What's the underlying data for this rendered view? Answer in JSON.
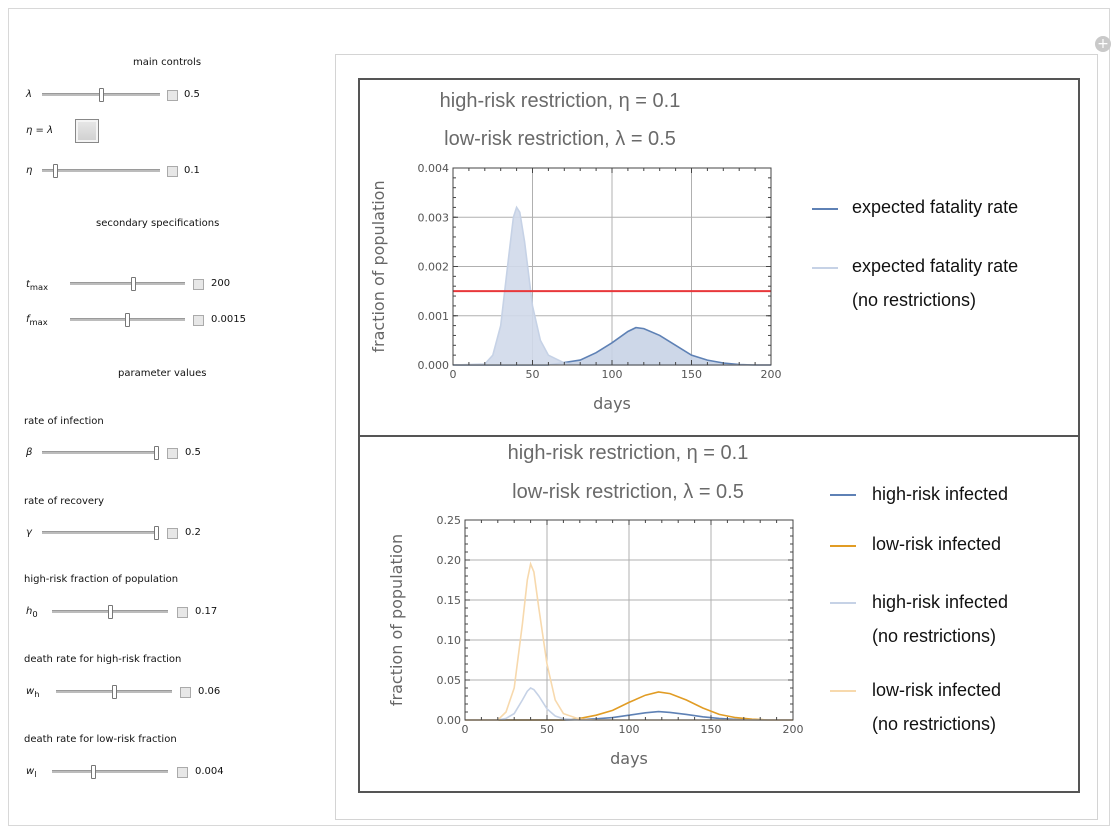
{
  "controls": {
    "main_header": "main controls",
    "lambda": {
      "label": "λ",
      "value": "0.5",
      "fraction": 0.5
    },
    "eta_eq_lambda_label": "η = λ",
    "eta": {
      "label": "η",
      "value": "0.1",
      "fraction": 0.1
    },
    "secondary_header": "secondary specifications",
    "tmax": {
      "label": "t",
      "sub": "max",
      "value": "200",
      "fraction": 0.55
    },
    "fmax": {
      "label": "f",
      "sub": "max",
      "value": "0.0015",
      "fraction": 0.5
    },
    "param_header": "parameter values",
    "beta": {
      "heading": "rate of infection",
      "label": "β",
      "value": "0.5",
      "fraction": 1.0
    },
    "gamma": {
      "heading": "rate of recovery",
      "label": "γ",
      "value": "0.2",
      "fraction": 1.0
    },
    "h0": {
      "heading": "high-risk fraction of population",
      "label": "h",
      "sub": "0",
      "value": "0.17",
      "fraction": 0.5
    },
    "wh": {
      "heading": "death rate for high-risk fraction",
      "label": "w",
      "sub": "h",
      "value": "0.06",
      "fraction": 0.5
    },
    "wl": {
      "heading": "death rate for low-risk fraction",
      "label": "w",
      "sub": "l",
      "value": "0.004",
      "fraction": 0.35
    }
  },
  "plot1": {
    "title_line1": "high-risk restriction, η = 0.1",
    "title_line2": "low-risk restriction, λ = 0.5",
    "legend1": "expected fatality rate",
    "legend2a": "expected fatality rate",
    "legend2b": "(no restrictions)"
  },
  "plot2": {
    "title_line1": "high-risk restriction, η = 0.1",
    "title_line2": "low-risk restriction, λ = 0.5",
    "legend1": "high-risk infected",
    "legend2": "low-risk infected",
    "legend3a": "high-risk infected",
    "legend3b": "(no restrictions)",
    "legend4a": "low-risk infected",
    "legend4b": "(no restrictions)"
  },
  "colors": {
    "high_risk": "#5e81b5",
    "low_risk": "#e19c24",
    "high_risk_nr": "#c6d2e6",
    "low_risk_nr": "#f7d9ad",
    "threshold": "#e8383b"
  },
  "chart_data": [
    {
      "type": "line",
      "title": "",
      "xlabel": "days",
      "ylabel": "fraction of population",
      "xlim": [
        0,
        200
      ],
      "ylim": [
        0,
        0.004
      ],
      "x_ticks": [
        "0",
        "50",
        "100",
        "150",
        "200"
      ],
      "y_ticks": [
        "0.000",
        "0.001",
        "0.002",
        "0.003",
        "0.004"
      ],
      "grid": true,
      "legend_position": "right",
      "threshold": 0.0015,
      "series": [
        {
          "name": "expected fatality rate",
          "x": [
            0,
            20,
            30,
            40,
            50,
            60,
            70,
            80,
            90,
            100,
            110,
            115,
            120,
            130,
            140,
            150,
            160,
            170,
            180,
            190,
            200
          ],
          "y": [
            0,
            0,
            0,
            0,
            0,
            0,
            5e-05,
            0.0001,
            0.00025,
            0.00045,
            0.00068,
            0.00076,
            0.00074,
            0.0006,
            0.0004,
            0.0002,
            0.0001,
            4e-05,
            1e-05,
            0,
            0
          ],
          "filled": true
        },
        {
          "name": "expected fatality rate (no restrictions)",
          "x": [
            0,
            20,
            25,
            30,
            35,
            38,
            40,
            42,
            45,
            50,
            55,
            60,
            70,
            80,
            90,
            200
          ],
          "y": [
            0,
            2e-05,
            0.0002,
            0.0008,
            0.0022,
            0.003,
            0.0032,
            0.0031,
            0.0025,
            0.0012,
            0.0005,
            0.0002,
            4e-05,
            0,
            0,
            0
          ],
          "filled": true
        }
      ]
    },
    {
      "type": "line",
      "title": "",
      "xlabel": "days",
      "ylabel": "fraction of population",
      "xlim": [
        0,
        200
      ],
      "ylim": [
        0,
        0.25
      ],
      "x_ticks": [
        "0",
        "50",
        "100",
        "150",
        "200"
      ],
      "y_ticks": [
        "0.00",
        "0.05",
        "0.10",
        "0.15",
        "0.20",
        "0.25"
      ],
      "grid": true,
      "legend_position": "right",
      "series": [
        {
          "name": "high-risk infected",
          "x": [
            0,
            60,
            70,
            80,
            90,
            100,
            110,
            118,
            125,
            135,
            145,
            155,
            165,
            175,
            185,
            200
          ],
          "y": [
            0,
            0,
            0.0005,
            0.0015,
            0.003,
            0.006,
            0.009,
            0.0105,
            0.0095,
            0.007,
            0.004,
            0.002,
            0.0008,
            0.0002,
            0,
            0
          ]
        },
        {
          "name": "low-risk infected",
          "x": [
            0,
            60,
            70,
            80,
            90,
            100,
            110,
            118,
            125,
            135,
            145,
            155,
            165,
            175,
            185,
            200
          ],
          "y": [
            0,
            0,
            0.002,
            0.006,
            0.012,
            0.022,
            0.031,
            0.035,
            0.033,
            0.025,
            0.015,
            0.007,
            0.003,
            0.001,
            0,
            0
          ]
        },
        {
          "name": "high-risk infected (no restrictions)",
          "x": [
            0,
            20,
            25,
            30,
            35,
            38,
            40,
            42,
            45,
            50,
            55,
            60,
            70,
            80,
            200
          ],
          "y": [
            0,
            0,
            0.002,
            0.008,
            0.025,
            0.036,
            0.04,
            0.038,
            0.03,
            0.014,
            0.005,
            0.0015,
            0.0002,
            0,
            0
          ]
        },
        {
          "name": "low-risk infected (no restrictions)",
          "x": [
            0,
            20,
            25,
            30,
            35,
            38,
            40,
            42,
            45,
            50,
            55,
            60,
            70,
            80,
            200
          ],
          "y": [
            0,
            0,
            0.01,
            0.04,
            0.12,
            0.175,
            0.195,
            0.185,
            0.14,
            0.07,
            0.025,
            0.008,
            0.001,
            0,
            0
          ]
        }
      ]
    }
  ]
}
